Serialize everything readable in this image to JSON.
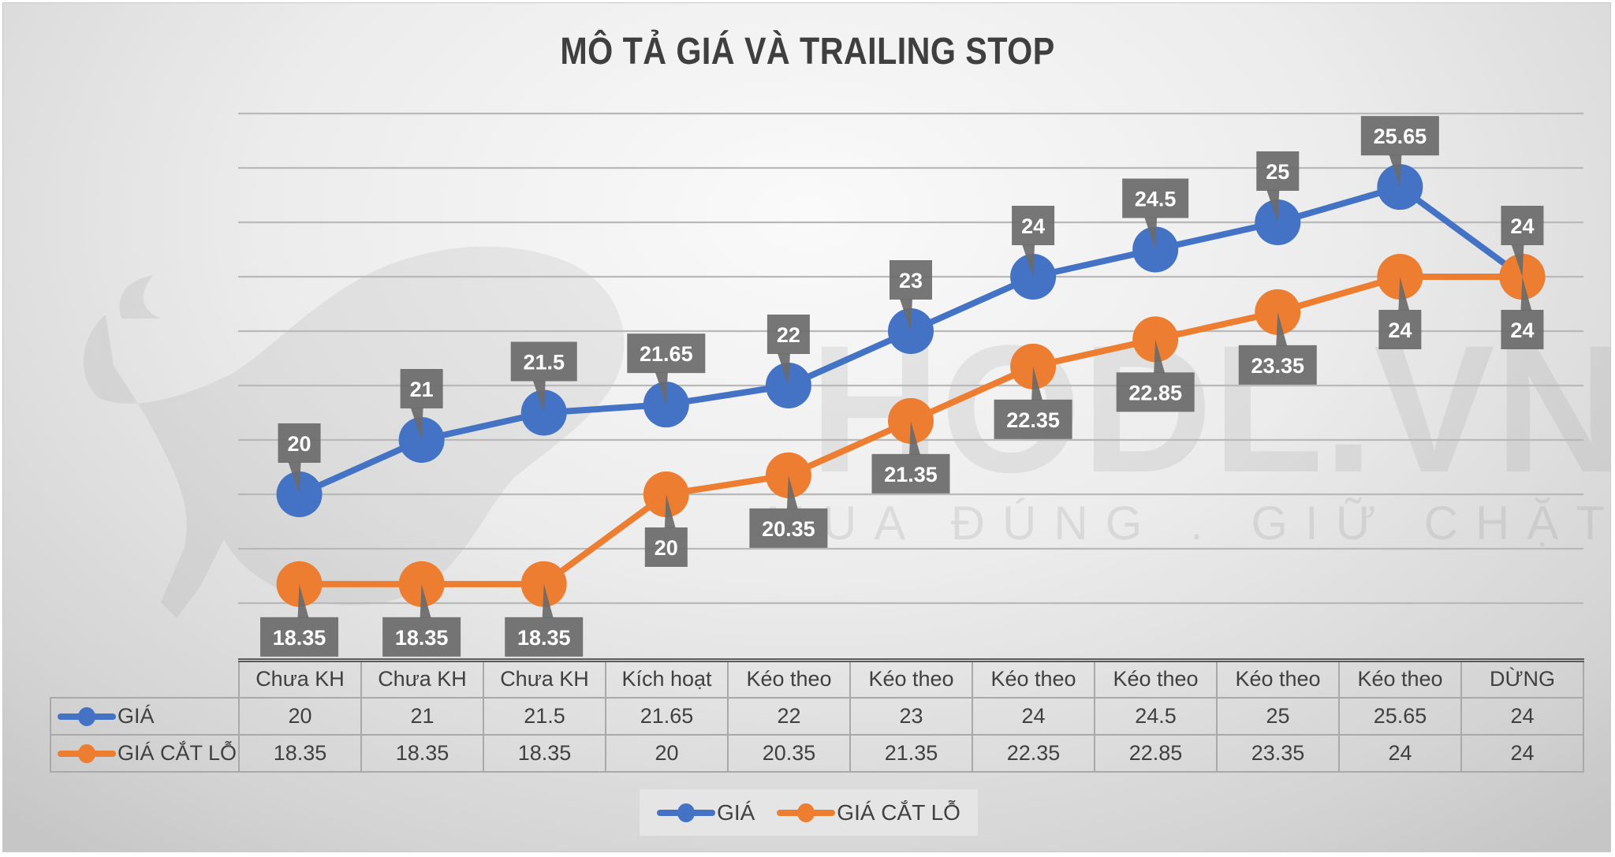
{
  "title": "MÔ TẢ GIÁ VÀ TRAILING STOP",
  "watermark": {
    "brand": "HODL.VN",
    "slogan": "MUA ĐÚNG . GIỮ CHẶT"
  },
  "colors": {
    "price": "#4472c4",
    "stop_loss": "#ed7d31",
    "callout": "#6a6a6a"
  },
  "table": {
    "categories": [
      "Chưa KH",
      "Chưa KH",
      "Chưa KH",
      "Kích hoạt",
      "Kéo theo",
      "Kéo theo",
      "Kéo theo",
      "Kéo theo",
      "Kéo theo",
      "Kéo theo",
      "DỪNG"
    ],
    "rows": [
      {
        "label": "GIÁ",
        "values": [
          "20",
          "21",
          "21.5",
          "21.65",
          "22",
          "23",
          "24",
          "24.5",
          "25",
          "25.65",
          "24"
        ]
      },
      {
        "label": "GIÁ CẮT LỖ",
        "values": [
          "18.35",
          "18.35",
          "18.35",
          "20",
          "20.35",
          "21.35",
          "22.35",
          "22.85",
          "23.35",
          "24",
          "24"
        ]
      }
    ]
  },
  "legend": {
    "items": [
      {
        "label": "GIÁ"
      },
      {
        "label": "GIÁ CẮT LỖ"
      }
    ]
  },
  "chart_data": {
    "type": "line",
    "title": "MÔ TẢ GIÁ VÀ TRAILING STOP",
    "xlabel": "",
    "ylabel": "",
    "categories": [
      "Chưa KH",
      "Chưa KH",
      "Chưa KH",
      "Kích hoạt",
      "Kéo theo",
      "Kéo theo",
      "Kéo theo",
      "Kéo theo",
      "Kéo theo",
      "Kéo theo",
      "DỪNG"
    ],
    "series": [
      {
        "name": "GIÁ",
        "color": "#4472c4",
        "values": [
          20,
          21,
          21.5,
          21.65,
          22,
          23,
          24,
          24.5,
          25,
          25.65,
          24
        ],
        "label_position": "above"
      },
      {
        "name": "GIÁ CẮT LỖ",
        "color": "#ed7d31",
        "values": [
          18.35,
          18.35,
          18.35,
          20,
          20.35,
          21.35,
          22.35,
          22.85,
          23.35,
          24,
          24
        ],
        "label_position": "below"
      }
    ],
    "ylim": [
      17,
      27
    ],
    "y_gridlines": [
      18,
      19,
      20,
      21,
      22,
      23,
      24,
      25,
      26,
      27
    ],
    "y_axis_labels_visible": false,
    "grid": true,
    "data_labels": true,
    "data_table": true,
    "legend_position": "bottom"
  }
}
